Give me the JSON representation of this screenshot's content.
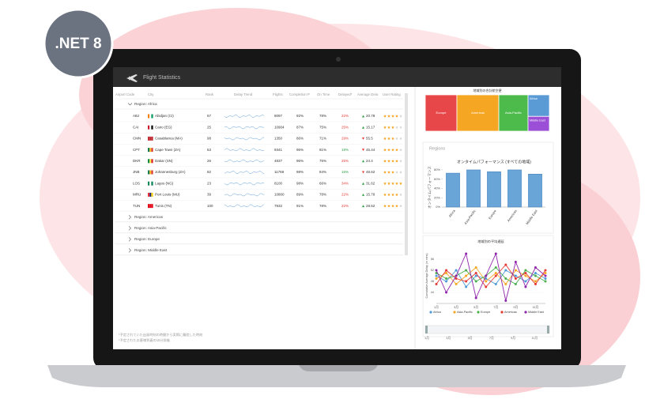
{
  "badge": ".NET 8",
  "app": {
    "title": "Flight Statistics"
  },
  "table": {
    "headers": [
      "Airport Code",
      "City",
      "Rank",
      "Delay Trend",
      "Flights",
      "Completion P",
      "On Time",
      "Delayed*",
      "Average Dela",
      "User Rating"
    ],
    "groups": [
      {
        "label": "Region: Africa",
        "rows": [
          {
            "code": "ABJ",
            "city": "Abidjan (CI)",
            "flag": [
              "#f77f00",
              "#ffffff",
              "#009e60"
            ],
            "rank": 67,
            "flights": 8097,
            "completion": "92%",
            "on_time": "78%",
            "delayed": "22%",
            "delayed_ok": false,
            "avg_delay": 20.78,
            "trend": "up",
            "rating": 4
          },
          {
            "code": "CAI",
            "city": "Cairo (EG)",
            "flag": [
              "#ce1126",
              "#ffffff",
              "#000000"
            ],
            "rank": 25,
            "flights": 10904,
            "completion": "87%",
            "on_time": "75%",
            "delayed": "25%",
            "delayed_ok": false,
            "avg_delay": 15.17,
            "trend": "up",
            "rating": 3
          },
          {
            "code": "CMN",
            "city": "Casablanca (MA)",
            "flag": [
              "#c1272d",
              "#c1272d",
              "#c1272d"
            ],
            "rank": 98,
            "flights": 1350,
            "completion": "86%",
            "on_time": "71%",
            "delayed": "29%",
            "delayed_ok": false,
            "avg_delay": 55.5,
            "trend": "down",
            "rating": 3
          },
          {
            "code": "CPT",
            "city": "Cape Town (ZA)",
            "flag": [
              "#007749",
              "#ffb81c",
              "#de3831"
            ],
            "rank": 53,
            "flights": 9341,
            "completion": "95%",
            "on_time": "81%",
            "delayed": "19%",
            "delayed_ok": true,
            "avg_delay": 45.44,
            "trend": "down",
            "rating": 4
          },
          {
            "code": "DKR",
            "city": "Dakar (SN)",
            "flag": [
              "#00853f",
              "#fdef42",
              "#e31b23"
            ],
            "rank": 26,
            "flights": 4837,
            "completion": "96%",
            "on_time": "75%",
            "delayed": "25%",
            "delayed_ok": false,
            "avg_delay": 24.4,
            "trend": "up",
            "rating": 4
          },
          {
            "code": "JNB",
            "city": "Johannesburg (ZA)",
            "flag": [
              "#007749",
              "#ffb81c",
              "#de3831"
            ],
            "rank": 82,
            "flights": 11769,
            "completion": "98%",
            "on_time": "84%",
            "delayed": "16%",
            "delayed_ok": true,
            "avg_delay": 48.62,
            "trend": "down",
            "rating": 3
          },
          {
            "code": "LOS",
            "city": "Lagos (NG)",
            "flag": [
              "#008751",
              "#ffffff",
              "#008751"
            ],
            "rank": 23,
            "flights": 8100,
            "completion": "98%",
            "on_time": "66%",
            "delayed": "34%",
            "delayed_ok": false,
            "avg_delay": 31.62,
            "trend": "up",
            "rating": 5
          },
          {
            "code": "MRU",
            "city": "Port Louis (MU)",
            "flag": [
              "#ea2839",
              "#1a206d",
              "#ffd500"
            ],
            "rank": 39,
            "flights": 10800,
            "completion": "89%",
            "on_time": "78%",
            "delayed": "22%",
            "delayed_ok": false,
            "avg_delay": 15.79,
            "trend": "up",
            "rating": 4
          },
          {
            "code": "TUN",
            "city": "Tunis (TN)",
            "flag": [
              "#e70013",
              "#e70013",
              "#e70013"
            ],
            "rank": 100,
            "flights": 7932,
            "completion": "91%",
            "on_time": "78%",
            "delayed": "22%",
            "delayed_ok": false,
            "avg_delay": 28.52,
            "trend": "up",
            "rating": 4
          }
        ]
      },
      {
        "label": "Region: Americas"
      },
      {
        "label": "Region: Asia-Pacific"
      },
      {
        "label": "Region: Europe"
      },
      {
        "label": "Region: Middle East"
      }
    ]
  },
  "footnotes": [
    "*予定されていた出発時刻の時間から実際に離陸した時刻",
    "*予定されたお客様到着の15分前後"
  ],
  "regions_label": "Regions",
  "chart_data": [
    {
      "type": "treemap",
      "title": "地域別の合計航空便",
      "categories": [
        "Europe",
        "Americas",
        "Asia-Pacific",
        "Africa",
        "Middle East"
      ],
      "values": [
        40,
        53,
        37,
        16,
        11
      ],
      "colors": [
        "#e8474a",
        "#f5a623",
        "#4cbb4c",
        "#5b9bd5",
        "#9b4fd6"
      ]
    },
    {
      "type": "bar",
      "title": "オンタイムパフォーマンス (すべての地域)",
      "y_label": "オンタイムパフォーマンス",
      "categories": [
        "Africa",
        "Asia-Pacific",
        "Europe",
        "Americas",
        "Middle East"
      ],
      "values": [
        73,
        80,
        76,
        80,
        71
      ],
      "color": "#6aa5d8",
      "ylim": [
        0,
        85
      ],
      "yticks": [
        {
          "value": 0,
          "label": "0%"
        },
        {
          "value": 20,
          "label": "20%"
        },
        {
          "value": 40,
          "label": "40%"
        },
        {
          "value": 60,
          "label": "60%"
        },
        {
          "value": 80,
          "label": "80%"
        }
      ]
    },
    {
      "type": "line",
      "title": "地域別の平均遅延",
      "y_label": "Cumulative Average Delay (in mins)",
      "categories": [
        "1月",
        null,
        "3月",
        null,
        "5月",
        null,
        "7月",
        null,
        "9月",
        null,
        "11月",
        null
      ],
      "ylim": [
        40,
        60
      ],
      "yticks": [
        44,
        48,
        52,
        56
      ],
      "series": [
        {
          "name": "Africa",
          "color": "#4e9ad6",
          "values": [
            50,
            48,
            52,
            46,
            50,
            49,
            47,
            52,
            50,
            48,
            51,
            49
          ]
        },
        {
          "name": "Asia-Pacific",
          "color": "#f5a623",
          "values": [
            49,
            51,
            47,
            50,
            53,
            48,
            51,
            47,
            52,
            50,
            48,
            51
          ]
        },
        {
          "name": "Europe",
          "color": "#4caf50",
          "values": [
            51,
            49,
            50,
            52,
            48,
            50,
            53,
            49,
            47,
            52,
            50,
            48
          ]
        },
        {
          "name": "Americas",
          "color": "#e53935",
          "values": [
            47,
            52,
            49,
            48,
            51,
            46,
            50,
            54,
            49,
            51,
            47,
            52
          ]
        },
        {
          "name": "Middle East",
          "color": "#8e24aa",
          "values": [
            52,
            44,
            50,
            58,
            42,
            50,
            58,
            41,
            55,
            46,
            53,
            50
          ]
        }
      ]
    }
  ]
}
